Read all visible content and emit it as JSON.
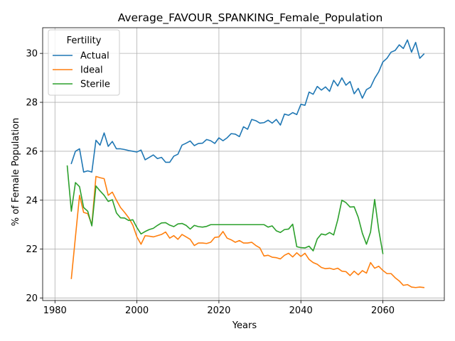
{
  "chart_data": {
    "type": "line",
    "title": "Average_FAVOUR_SPANKING_Female_Population",
    "xlabel": "Years",
    "ylabel": "% of Female Population",
    "xlim": [
      1977,
      2075
    ],
    "ylim": [
      19.9,
      31.05
    ],
    "xticks": [
      1980,
      2000,
      2020,
      2040,
      2060
    ],
    "yticks": [
      20,
      22,
      24,
      26,
      28,
      30
    ],
    "grid": true,
    "legend": {
      "title": "Fertility",
      "placement": "top-left"
    },
    "series": [
      {
        "name": "Actual",
        "color": "#1f77b4",
        "x": [
          1984,
          1985,
          1986,
          1987,
          1988,
          1989,
          1990,
          1991,
          1992,
          1993,
          1994,
          1995,
          1996,
          1997,
          1998,
          1999,
          2000,
          2001,
          2002,
          2003,
          2004,
          2005,
          2006,
          2007,
          2008,
          2009,
          2010,
          2011,
          2012,
          2013,
          2014,
          2015,
          2016,
          2017,
          2018,
          2019,
          2020,
          2021,
          2022,
          2023,
          2024,
          2025,
          2026,
          2027,
          2028,
          2029,
          2030,
          2031,
          2032,
          2033,
          2034,
          2035,
          2036,
          2037,
          2038,
          2039,
          2040,
          2041,
          2042,
          2043,
          2044,
          2045,
          2046,
          2047,
          2048,
          2049,
          2050,
          2051,
          2052,
          2053,
          2054,
          2055,
          2056,
          2057,
          2058,
          2059,
          2060,
          2061,
          2062,
          2063,
          2064,
          2065,
          2066,
          2067,
          2068,
          2069,
          2070
        ],
        "values": [
          25.5,
          26.0,
          26.1,
          25.15,
          25.2,
          25.15,
          26.45,
          26.25,
          26.75,
          26.2,
          26.4,
          26.1,
          26.1,
          26.07,
          26.03,
          26.0,
          25.97,
          26.05,
          25.65,
          25.75,
          25.85,
          25.7,
          25.75,
          25.55,
          25.55,
          25.8,
          25.88,
          26.25,
          26.33,
          26.42,
          26.23,
          26.32,
          26.33,
          26.48,
          26.43,
          26.32,
          26.55,
          26.43,
          26.55,
          26.72,
          26.7,
          26.6,
          27.0,
          26.9,
          27.3,
          27.25,
          27.15,
          27.17,
          27.27,
          27.15,
          27.3,
          27.07,
          27.52,
          27.47,
          27.58,
          27.5,
          27.92,
          27.88,
          28.42,
          28.33,
          28.65,
          28.5,
          28.63,
          28.45,
          28.9,
          28.67,
          29.0,
          28.7,
          28.85,
          28.35,
          28.57,
          28.17,
          28.52,
          28.62,
          28.98,
          29.25,
          29.65,
          29.8,
          30.05,
          30.12,
          30.35,
          30.2,
          30.55,
          30.05,
          30.45,
          29.8,
          29.97
        ]
      },
      {
        "name": "Ideal",
        "color": "#ff7f0e",
        "x": [
          1984,
          1985,
          1986,
          1987,
          1988,
          1989,
          1990,
          1991,
          1992,
          1993,
          1994,
          1995,
          1996,
          1997,
          1998,
          1999,
          2000,
          2001,
          2002,
          2003,
          2004,
          2005,
          2006,
          2007,
          2008,
          2009,
          2010,
          2011,
          2012,
          2013,
          2014,
          2015,
          2016,
          2017,
          2018,
          2019,
          2020,
          2021,
          2022,
          2023,
          2024,
          2025,
          2026,
          2027,
          2028,
          2029,
          2030,
          2031,
          2032,
          2033,
          2034,
          2035,
          2036,
          2037,
          2038,
          2039,
          2040,
          2041,
          2042,
          2043,
          2044,
          2045,
          2046,
          2047,
          2048,
          2049,
          2050,
          2051,
          2052,
          2053,
          2054,
          2055,
          2056,
          2057,
          2058,
          2059,
          2060,
          2061,
          2062,
          2063,
          2064,
          2065,
          2066,
          2067,
          2068,
          2069,
          2070
        ],
        "values": [
          20.8,
          22.5,
          24.2,
          23.5,
          23.45,
          23.0,
          24.97,
          24.92,
          24.88,
          24.2,
          24.33,
          24.0,
          23.7,
          23.5,
          23.28,
          22.98,
          22.5,
          22.2,
          22.55,
          22.53,
          22.5,
          22.55,
          22.6,
          22.7,
          22.45,
          22.55,
          22.4,
          22.6,
          22.5,
          22.4,
          22.15,
          22.25,
          22.25,
          22.23,
          22.28,
          22.48,
          22.5,
          22.72,
          22.45,
          22.38,
          22.28,
          22.35,
          22.25,
          22.25,
          22.28,
          22.15,
          22.05,
          21.72,
          21.75,
          21.67,
          21.65,
          21.6,
          21.75,
          21.83,
          21.68,
          21.85,
          21.7,
          21.83,
          21.58,
          21.45,
          21.38,
          21.25,
          21.2,
          21.22,
          21.17,
          21.22,
          21.1,
          21.08,
          20.92,
          21.1,
          20.95,
          21.12,
          21.02,
          21.45,
          21.22,
          21.3,
          21.13,
          21.0,
          21.0,
          20.83,
          20.7,
          20.52,
          20.55,
          20.45,
          20.43,
          20.45,
          20.43
        ]
      },
      {
        "name": "Sterile",
        "color": "#2ca02c",
        "x": [
          1983,
          1984,
          1985,
          1986,
          1987,
          1988,
          1989,
          1990,
          1991,
          1992,
          1993,
          1994,
          1995,
          1996,
          1997,
          1998,
          1999,
          2000,
          2001,
          2002,
          2003,
          2004,
          2005,
          2006,
          2007,
          2008,
          2009,
          2010,
          2011,
          2012,
          2013,
          2014,
          2015,
          2016,
          2017,
          2018,
          2019,
          2020,
          2021,
          2022,
          2023,
          2024,
          2025,
          2026,
          2027,
          2028,
          2029,
          2030,
          2031,
          2032,
          2033,
          2034,
          2035,
          2036,
          2037,
          2038,
          2039,
          2040,
          2041,
          2042,
          2043,
          2044,
          2045,
          2046,
          2047,
          2048,
          2049,
          2050,
          2051,
          2052,
          2053,
          2054,
          2055,
          2056,
          2057,
          2058,
          2059,
          2060
        ],
        "values": [
          25.4,
          23.55,
          24.72,
          24.55,
          23.7,
          23.55,
          22.95,
          24.58,
          24.38,
          24.2,
          23.95,
          24.02,
          23.48,
          23.28,
          23.27,
          23.17,
          23.2,
          22.88,
          22.62,
          22.72,
          22.8,
          22.85,
          22.97,
          23.07,
          23.08,
          22.98,
          22.92,
          23.03,
          23.05,
          22.97,
          22.82,
          22.97,
          22.92,
          22.9,
          22.93,
          23.0,
          23.0,
          23.0,
          23.0,
          23.0,
          23.0,
          23.0,
          23.0,
          23.0,
          23.0,
          23.0,
          23.0,
          23.0,
          23.0,
          22.9,
          22.95,
          22.75,
          22.68,
          22.8,
          22.82,
          23.02,
          22.1,
          22.06,
          22.05,
          22.12,
          21.93,
          22.42,
          22.62,
          22.58,
          22.68,
          22.58,
          23.2,
          24.0,
          23.9,
          23.72,
          23.73,
          23.3,
          22.65,
          22.2,
          22.7,
          24.03,
          22.78,
          21.82
        ]
      }
    ]
  }
}
